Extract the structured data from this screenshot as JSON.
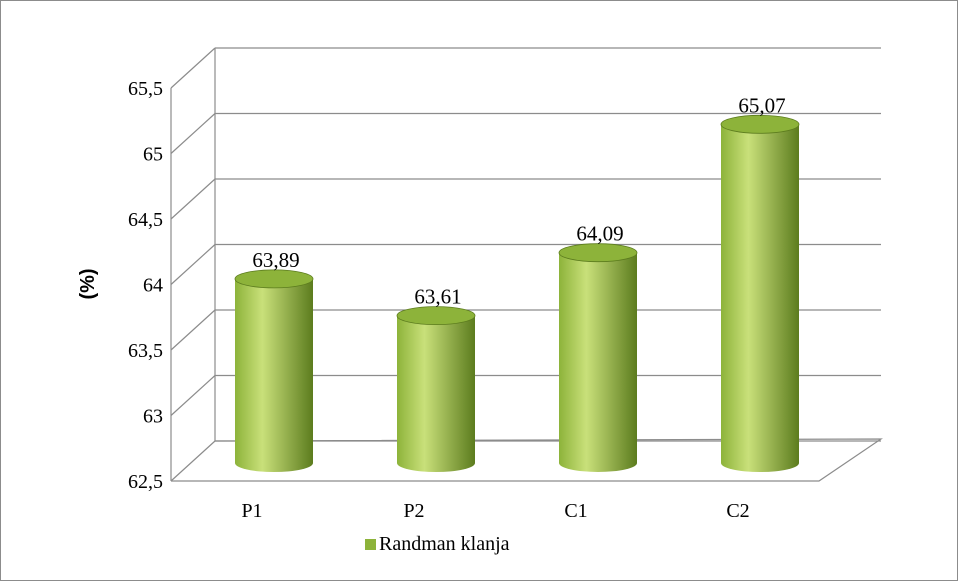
{
  "chart_data": {
    "type": "bar",
    "style": "3d-cylinder",
    "categories": [
      "P1",
      "P2",
      "C1",
      "C2"
    ],
    "series": [
      {
        "name": "Randman klanja",
        "values": [
          63.89,
          63.61,
          64.09,
          65.07
        ],
        "color": "#8db33a"
      }
    ],
    "data_labels": [
      "63,89",
      "63,61",
      "64,09",
      "65,07"
    ],
    "y_ticks": [
      62.5,
      63,
      63.5,
      64,
      64.5,
      65,
      65.5
    ],
    "y_tick_labels": [
      "62,5",
      "63",
      "63,5",
      "64",
      "64,5",
      "65",
      "65,5"
    ],
    "ylim": [
      62.5,
      65.5
    ],
    "xlabel": "",
    "ylabel": "(%)",
    "grid": true,
    "legend": "bottom"
  },
  "colors": {
    "bar_light": "#c9e07a",
    "bar_mid": "#8db33a",
    "bar_dark": "#5c7c1e",
    "grid": "#8c8c8c"
  }
}
